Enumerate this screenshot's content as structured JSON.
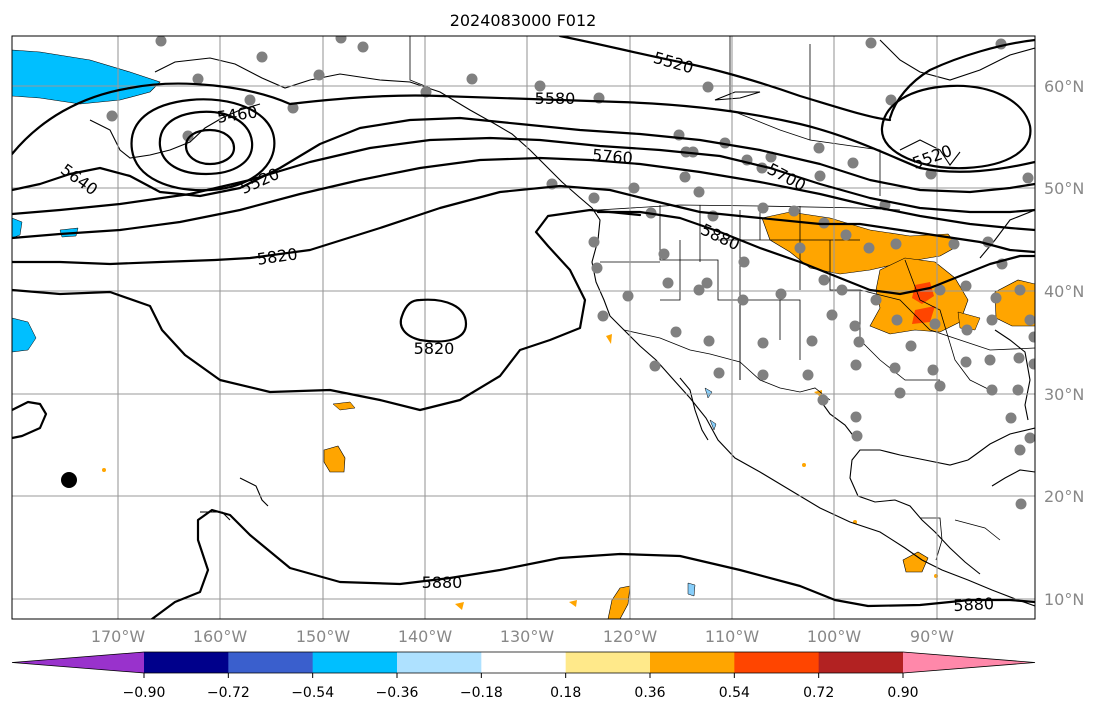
{
  "title": "2024083000 F012",
  "latitude_labels": [
    "10°N",
    "20°N",
    "30°N",
    "40°N",
    "50°N",
    "60°N"
  ],
  "longitude_labels": [
    "170°W",
    "160°W",
    "150°W",
    "140°W",
    "130°W",
    "120°W",
    "110°W",
    "100°W",
    "90°W"
  ],
  "contour_labels": {
    "c5520_nw": "5520",
    "c5520_ne": "5520",
    "c5460": "5460",
    "c5520_low": "5520",
    "c5640": "5640",
    "c5580": "5580",
    "c5760": "5760",
    "c5700": "5700",
    "c5880_w": "5880",
    "c5820_w": "5820",
    "c5820_c": "5820",
    "c5880_s": "5880",
    "c5880_se": "5880"
  },
  "colorbar": {
    "ticks": [
      "−0.90",
      "−0.72",
      "−0.54",
      "−0.36",
      "−0.18",
      "0.18",
      "0.36",
      "0.54",
      "0.72",
      "0.90"
    ],
    "colors": [
      "#9932cc",
      "#00008b",
      "#3a5fcd",
      "#00bfff",
      "#aee1ff",
      "#ffffff",
      "#ffe98a",
      "#ffa500",
      "#ff4500",
      "#b22222",
      "#ff88aa"
    ]
  }
}
